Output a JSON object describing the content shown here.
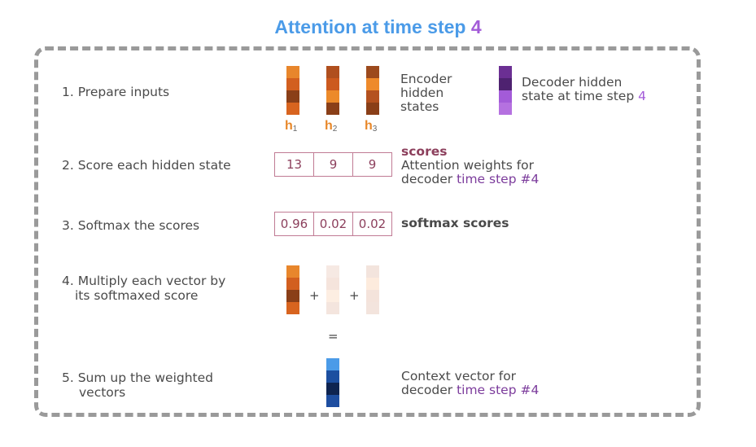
{
  "title": {
    "prefix": "Attention at time step ",
    "number": "4"
  },
  "steps": {
    "s1": "1.  Prepare inputs",
    "s2": "2.  Score each hidden state",
    "s3": "3.  Softmax the scores",
    "s4_line1": "4. Multiply each vector by",
    "s4_line2": "its softmaxed score",
    "s5_line1": "5. Sum up the weighted",
    "s5_line2": "vectors"
  },
  "encoder": {
    "label_line1": "Encoder",
    "label_line2": "hidden",
    "label_line3": "states",
    "names": [
      {
        "h": "h",
        "sub": "1"
      },
      {
        "h": "h",
        "sub": "2"
      },
      {
        "h": "h",
        "sub": "3"
      }
    ],
    "colors": [
      [
        "#e8862c",
        "#d25f1f",
        "#8a3f18",
        "#d8641f"
      ],
      [
        "#b04f1e",
        "#cc5a1e",
        "#ec8a2a",
        "#8a3f18"
      ],
      [
        "#9c4a1d",
        "#ee8a2b",
        "#b4511f",
        "#8a3f18"
      ]
    ]
  },
  "decoder": {
    "label_line1": "Decoder hidden",
    "label_line2": "state at time step ",
    "label_num": "4",
    "colors": [
      "#6b2f93",
      "#4e2270",
      "#a35bd8",
      "#b571e0"
    ]
  },
  "scores": {
    "values": [
      "13",
      "9",
      "9"
    ],
    "label": "scores",
    "desc_line1": "Attention weights for",
    "desc_line2_prefix": "decoder ",
    "desc_line2_hl": "time step #4"
  },
  "softmax": {
    "values": [
      "0.96",
      "0.02",
      "0.02"
    ],
    "label": "softmax scores"
  },
  "multiply": {
    "plus": "+",
    "equals": "=",
    "colors": [
      [
        "#e8862c",
        "#d25f1f",
        "#8a3f18",
        "#d8641f"
      ],
      [
        "#f6e9e3",
        "#f5e4dc",
        "#fdeee2",
        "#f4e5de"
      ],
      [
        "#f3e4dd",
        "#fdebdd",
        "#f4e3db",
        "#f3e4dd"
      ]
    ]
  },
  "context": {
    "desc_line1": "Context vector for",
    "desc_line2_prefix": "decoder ",
    "desc_line2_hl": "time step #4",
    "colors": [
      "#4b9be8",
      "#1c4fa0",
      "#0e2450",
      "#1e4ea0"
    ]
  }
}
